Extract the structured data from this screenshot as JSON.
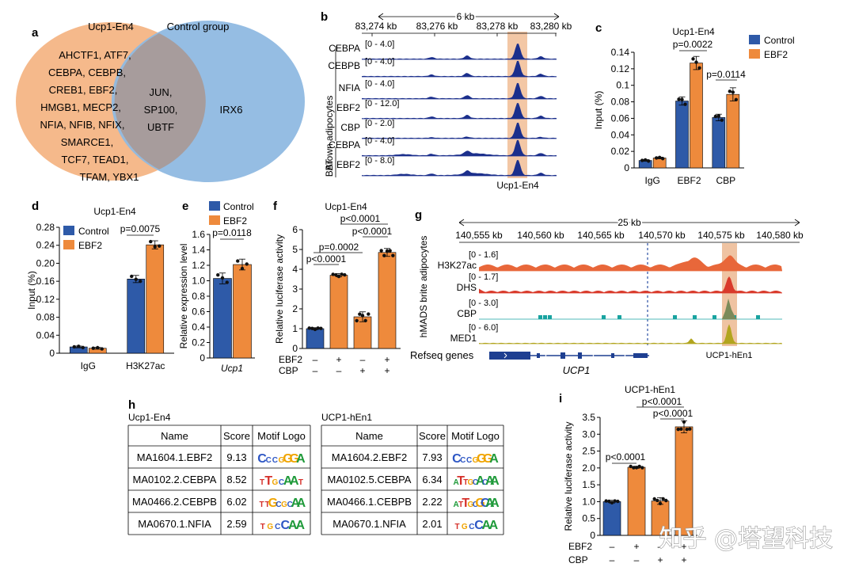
{
  "panels": {
    "a": {
      "letter": "a",
      "left_title": "Ucp1-En4",
      "right_title": "Control group",
      "left_lines": [
        "AHCTF1, ATF7,",
        "CEBPA, CEBPB,",
        "CREB1, EBF2,",
        "HMGB1, MECP2,",
        "NFIA, NFIB, NFIX,",
        "SMARCE1,",
        "TCF7, TEAD1,",
        "TFAM, YBX1"
      ],
      "overlap_lines": [
        "JUN,",
        "SP100,",
        "UBTF"
      ],
      "right_lines": [
        "IRX6"
      ],
      "colors": {
        "left": "#f5b98b",
        "right": "#8fb9e1",
        "overlap": "#a79c9c"
      }
    },
    "b": {
      "letter": "b",
      "scale_label": "6 kb",
      "coords": [
        "83,274 kb",
        "83,276 kb",
        "83,278 kb",
        "83,280 kb"
      ],
      "group_brown": "Brown adipocytes",
      "group_bat": "BAT",
      "tracks": [
        {
          "name": "CEBPA",
          "range": "[0 - 4.0]"
        },
        {
          "name": "CEBPB",
          "range": "[0 - 4.0]"
        },
        {
          "name": "NFIA",
          "range": "[0 - 4.0]"
        },
        {
          "name": "EBF2",
          "range": "[0 - 12.0]"
        },
        {
          "name": "CBP",
          "range": "[0 - 2.0]"
        },
        {
          "name": "CEBPA",
          "range": "[0 - 4.0]"
        },
        {
          "name": "EBF2",
          "range": "[0 - 8.0]"
        }
      ],
      "region_label": "Ucp1-En4",
      "track_color": "#1b2f8c",
      "highlight": "#f3c7a5"
    },
    "c": {
      "letter": "c",
      "title": "Ucp1-En4",
      "legend": [
        "Control",
        "EBF2"
      ],
      "pvalues": [
        "p=0.0022",
        "p=0.0114"
      ]
    },
    "d": {
      "letter": "d",
      "title": "Ucp1-En4",
      "legend": [
        "Control",
        "EBF2"
      ],
      "pvalues": [
        "p=0.0075"
      ]
    },
    "e": {
      "letter": "e",
      "legend": [
        "Control",
        "EBF2"
      ],
      "pvalues": [
        "p=0.0118"
      ],
      "xlabel": "Ucp1"
    },
    "f": {
      "letter": "f",
      "title": "Ucp1-En4",
      "pvalues": [
        "p<0.0001",
        "p<0.0001",
        "p=0.0002",
        "p<0.0001"
      ],
      "row_labels": [
        "EBF2",
        "CBP"
      ],
      "ebf2_signs": [
        "–",
        "+",
        "–",
        "+"
      ],
      "cbp_signs": [
        "–",
        "–",
        "+",
        "+"
      ]
    },
    "g": {
      "letter": "g",
      "scale_label": "25 kb",
      "coords": [
        "140,555 kb",
        "140,560 kb",
        "140,565 kb",
        "140,570 kb",
        "140,575 kb",
        "140,580 kb"
      ],
      "side_label": "hMADS brite adipocytes",
      "tracks": [
        {
          "name": "H3K27ac",
          "range": "[0 - 1.6]",
          "color": "#e8673a"
        },
        {
          "name": "DHS",
          "range": "[0 - 1.7]",
          "color": "#d93a2b"
        },
        {
          "name": "CBP",
          "range": "[0 - 3.0]",
          "color": "#19a3a0"
        },
        {
          "name": "MED1",
          "range": "[0 - 6.0]",
          "color": "#b2a51e"
        }
      ],
      "refseq_label": "Refseq genes",
      "gene_label": "UCP1",
      "region_label": "UCP1-hEn1",
      "highlight": "#efc3a2"
    },
    "h": {
      "letter": "h",
      "left_title": "Ucp1-En4",
      "right_title": "UCP1-hEn1",
      "headers": [
        "Name",
        "Score",
        "Motif Logo"
      ],
      "left_rows": [
        {
          "name": "MA1604.1.EBF2",
          "score": "9.13",
          "logo": "CCCGGGA"
        },
        {
          "name": "MA0102.2.CEBPA",
          "score": "8.52",
          "logo": "TTGCAAT"
        },
        {
          "name": "MA0466.2.CEBPB",
          "score": "6.02",
          "logo": "TTGCGCAA"
        },
        {
          "name": "MA0670.1.NFIA",
          "score": "2.59",
          "logo": "TGCCAA"
        }
      ],
      "right_rows": [
        {
          "name": "MA1604.2.EBF2",
          "score": "7.93",
          "logo": "CCCGGGA"
        },
        {
          "name": "MA0102.5.CEBPA",
          "score": "6.34",
          "logo": "ATTGCACAA"
        },
        {
          "name": "MA0466.1.CEBPB",
          "score": "2.22",
          "logo": "ATTGCGCAA"
        },
        {
          "name": "MA0670.1.NFIA",
          "score": "2.01",
          "logo": "TGCCAA"
        }
      ]
    },
    "i": {
      "letter": "i",
      "title": "UCP1-hEn1",
      "pvalues": [
        "p<0.0001",
        "p<0.0001",
        "p<0.0001"
      ],
      "row_labels": [
        "EBF2",
        "CBP"
      ],
      "ebf2_signs": [
        "–",
        "+",
        "–",
        "+"
      ],
      "cbp_signs": [
        "–",
        "–",
        "+",
        "+"
      ]
    }
  },
  "watermark": "知乎 @塔望科技",
  "colors": {
    "control": "#2e5aa8",
    "ebf2": "#ee8a3c"
  },
  "chart_data": [
    {
      "panel": "c",
      "type": "bar",
      "title": "Ucp1-En4",
      "categories": [
        "IgG",
        "EBF2",
        "CBP"
      ],
      "ylabel": "Input (%)",
      "ylim": [
        0,
        0.14
      ],
      "yticks": [
        0,
        0.02,
        0.04,
        0.06,
        0.08,
        0.1,
        0.12,
        0.14
      ],
      "ytick_labels": [
        "0",
        "0.02",
        "0.04",
        "0.06",
        "0.08",
        "0.1",
        "0.12",
        "0.14"
      ],
      "series": [
        {
          "name": "Control",
          "values": [
            0.009,
            0.081,
            0.061
          ],
          "errors": [
            0.001,
            0.005,
            0.004
          ]
        },
        {
          "name": "EBF2",
          "values": [
            0.012,
            0.127,
            0.089
          ],
          "errors": [
            0.001,
            0.008,
            0.008
          ]
        }
      ]
    },
    {
      "panel": "d",
      "type": "bar",
      "title": "Ucp1-En4",
      "categories": [
        "IgG",
        "H3K27ac"
      ],
      "ylabel": "Input (%)",
      "ylim": [
        0,
        0.28
      ],
      "yticks": [
        0,
        0.04,
        0.08,
        0.12,
        0.16,
        0.2,
        0.24,
        0.28
      ],
      "ytick_labels": [
        "0",
        "0.04",
        "0.08",
        "0.12",
        "0.16",
        "0.20",
        "0.24",
        "0.28"
      ],
      "series": [
        {
          "name": "Control",
          "values": [
            0.014,
            0.165
          ],
          "errors": [
            0.002,
            0.008
          ]
        },
        {
          "name": "EBF2",
          "values": [
            0.011,
            0.241
          ],
          "errors": [
            0.002,
            0.009
          ]
        }
      ]
    },
    {
      "panel": "e",
      "type": "bar",
      "title": "",
      "categories": [
        "Ucp1"
      ],
      "ylabel": "Relative expression level",
      "ylim": [
        0,
        1.6
      ],
      "yticks": [
        0,
        0.2,
        0.4,
        0.6,
        0.8,
        1.0,
        1.2,
        1.4,
        1.6
      ],
      "ytick_labels": [
        "0",
        "0.2",
        "0.4",
        "0.6",
        "0.8",
        "1.0",
        "1.2",
        "1.4",
        "1.6"
      ],
      "series": [
        {
          "name": "Control",
          "values": [
            1.03
          ],
          "errors": [
            0.07
          ]
        },
        {
          "name": "EBF2",
          "values": [
            1.21
          ],
          "errors": [
            0.07
          ]
        }
      ]
    },
    {
      "panel": "f",
      "type": "bar",
      "title": "Ucp1-En4",
      "categories": [
        "-/-",
        "EBF2",
        "CBP",
        "EBF2+CBP"
      ],
      "ylabel": "Relative luciferase activity",
      "ylim": [
        0,
        6
      ],
      "yticks": [
        0,
        1,
        2,
        3,
        4,
        5,
        6
      ],
      "ytick_labels": [
        "0",
        "1",
        "2",
        "3",
        "4",
        "5",
        "6"
      ],
      "values": [
        1.0,
        3.7,
        1.6,
        4.85
      ],
      "errors": [
        0.05,
        0.08,
        0.25,
        0.2
      ],
      "bar_colors": [
        "#2e5aa8",
        "#ee8a3c",
        "#ee8a3c",
        "#ee8a3c"
      ]
    },
    {
      "panel": "i",
      "type": "bar",
      "title": "UCP1-hEn1",
      "categories": [
        "-/-",
        "EBF2",
        "CBP",
        "EBF2+CBP"
      ],
      "ylabel": "Relative luciferase activity",
      "ylim": [
        0,
        3.5
      ],
      "yticks": [
        0,
        0.5,
        1.0,
        1.5,
        2.0,
        2.5,
        3.0,
        3.5
      ],
      "ytick_labels": [
        "0",
        "0.5",
        "1.0",
        "1.5",
        "2.0",
        "2.5",
        "3.0",
        "3.5"
      ],
      "values": [
        1.0,
        2.02,
        1.02,
        3.22
      ],
      "errors": [
        0.04,
        0.03,
        0.1,
        0.18
      ],
      "bar_colors": [
        "#2e5aa8",
        "#ee8a3c",
        "#ee8a3c",
        "#ee8a3c"
      ]
    }
  ]
}
